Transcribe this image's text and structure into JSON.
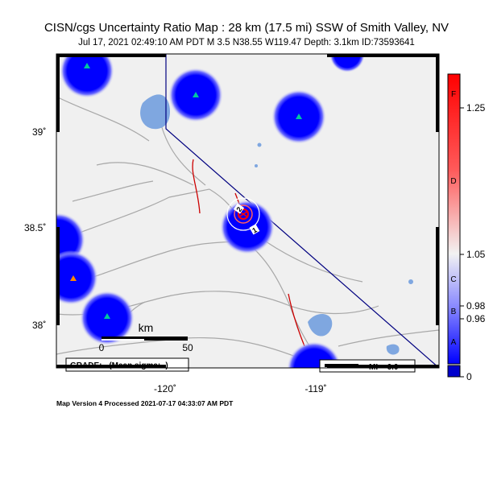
{
  "title": "CISN/cgs Uncertainty Ratio Map : 28 km (17.5 mi) SSW of Smith Valley, NV",
  "subtitle": "Jul 17, 2021 02:49:10 AM PDT   M 3.5   N38.55 W119.47   Depth: 3.1km   ID:73593641",
  "axes": {
    "lat_ticks": [
      "39˚",
      "38.5˚",
      "38˚"
    ],
    "lon_ticks": [
      "-120˚",
      "-119˚"
    ]
  },
  "scale_bar": {
    "unit": "km",
    "start": "0",
    "end": "50"
  },
  "grade_box": "GRADE: - (Mean sigma: -)",
  "mi_legend": "MI = 6.0",
  "contour_labels": [
    "2",
    "1"
  ],
  "colorbar": {
    "value_labels": [
      "1.25",
      "1.05",
      "0.98",
      "0.96",
      "0"
    ],
    "grade_letters": [
      "F",
      "D",
      "C",
      "B",
      "A"
    ],
    "colors": {
      "top": "#ff0000",
      "middle": "#f2f2f2",
      "bottom": "#0000ff",
      "bottom_cap": "#0000cc"
    }
  },
  "footer": "Map Version 4 Processed 2021-07-17 04:33:07 AM PDT",
  "colors": {
    "land": "#f0f0f0",
    "water": "#7fa7e0",
    "road": "#a8a8a8",
    "fault": "#cc0000",
    "border": "#000080",
    "station_blob": "#0000ff",
    "station_triangle": "#00c8a0"
  }
}
